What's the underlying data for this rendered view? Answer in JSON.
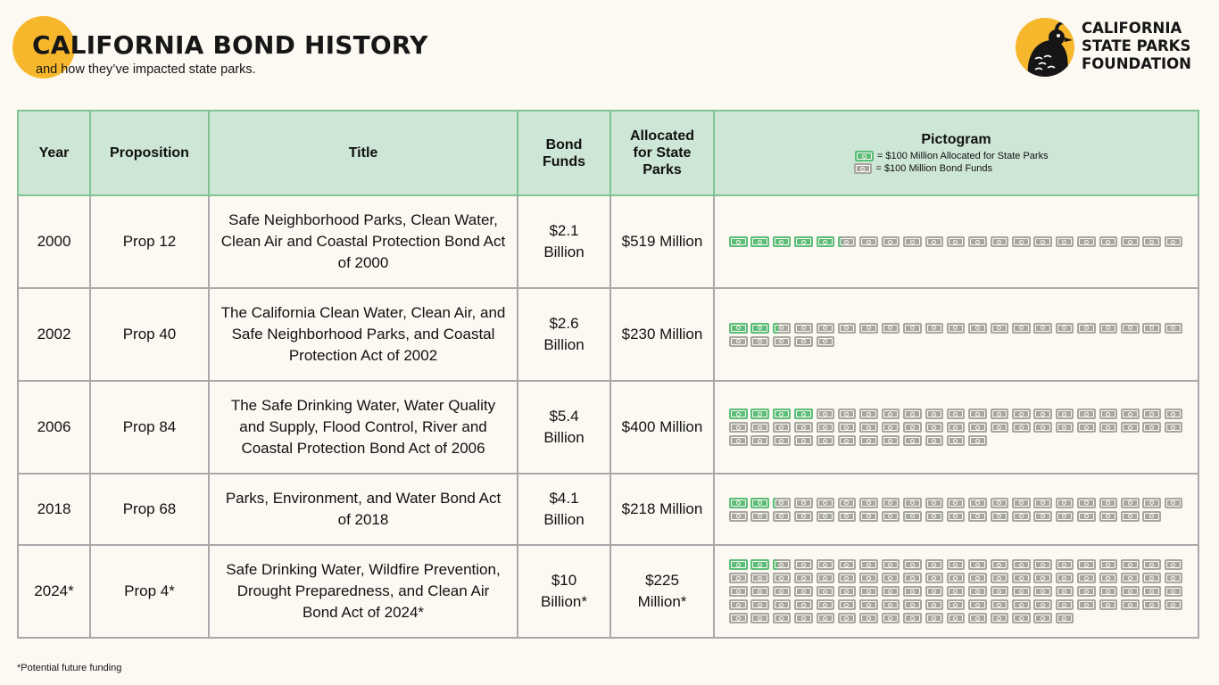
{
  "header": {
    "title": "CALIFORNIA BOND HISTORY",
    "subtitle": "and how they’ve impacted state parks."
  },
  "logo": {
    "line1": "CALIFORNIA",
    "line2": "STATE PARKS",
    "line3": "FOUNDATION",
    "icon": "quail-icon"
  },
  "table": {
    "headers": {
      "year": "Year",
      "proposition": "Proposition",
      "title": "Title",
      "bond_funds": "Bond Funds",
      "allocated": "Allocated for State Parks",
      "pictogram": "Pictogram"
    },
    "legend": {
      "allocated": "= $100 Million Allocated for State Parks",
      "bond": "= $100 Million Bond Funds"
    },
    "rows": [
      {
        "year": "2000",
        "prop": "Prop 12",
        "title": "Safe Neighborhood Parks, Clean Water, Clean Air and Coastal Protection Bond Act of 2000",
        "bond_funds": "$2.1 Billion",
        "allocated": "$519 Million"
      },
      {
        "year": "2002",
        "prop": "Prop 40",
        "title": "The California Clean Water, Clean Air, and Safe Neighborhood Parks, and Coastal Protection Act of 2002",
        "bond_funds": "$2.6 Billion",
        "allocated": "$230 Million"
      },
      {
        "year": "2006",
        "prop": "Prop 84",
        "title": "The Safe Drinking Water, Water Quality and Supply, Flood Control, River and Coastal Protection Bond Act of 2006",
        "bond_funds": "$5.4 Billion",
        "allocated": "$400 Million"
      },
      {
        "year": "2018",
        "prop": "Prop 68",
        "title": "Parks, Environment, and Water Bond Act of 2018",
        "bond_funds": "$4.1 Billion",
        "allocated": "$218 Million"
      },
      {
        "year": "2024*",
        "prop": "Prop 4*",
        "title": "Safe Drinking Water, Wildfire Prevention, Drought Preparedness, and Clean Air Bond Act of 2024*",
        "bond_funds": "$10 Billion*",
        "allocated": "$225 Million*"
      }
    ]
  },
  "footnote": "*Potential future funding",
  "colors": {
    "allocated_bill": "#5cbd78",
    "bond_bill": "#a7a7a0",
    "header_bg": "#cde6d5",
    "accent_yellow": "#f6b72c"
  },
  "chart_data": {
    "type": "table",
    "title": "CALIFORNIA BOND HISTORY",
    "subtitle": "and how they’ve impacted state parks.",
    "unit_per_icon_millions": 100,
    "categories": [
      "2000",
      "2002",
      "2006",
      "2018",
      "2024*"
    ],
    "series": [
      {
        "name": "Bond Funds",
        "values_millions": [
          2100,
          2600,
          5400,
          4100,
          10000
        ]
      },
      {
        "name": "Allocated for State Parks",
        "values_millions": [
          519,
          230,
          400,
          218,
          225
        ]
      }
    ]
  }
}
